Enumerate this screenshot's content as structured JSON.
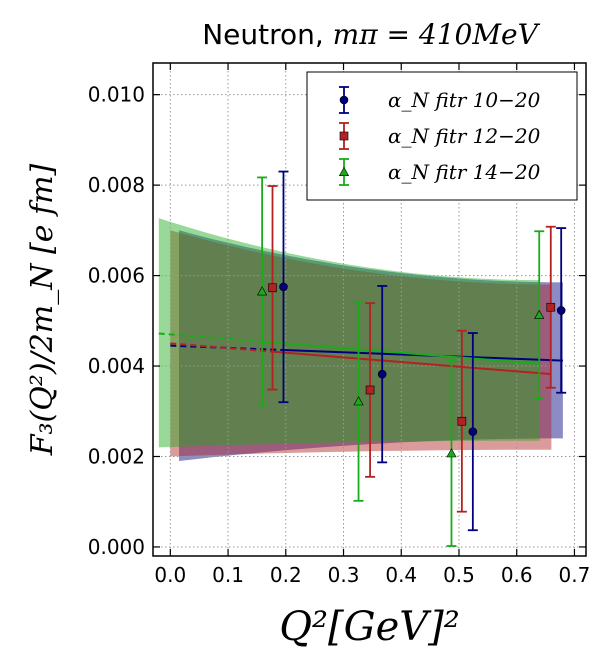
{
  "chart_data": {
    "type": "scatter",
    "title_prefix": "Neutron, ",
    "title_math": "mπ = 410MeV",
    "xlabel": "Q²[GeV]²",
    "ylabel": "F₃(Q²)/2m_N [e fm]",
    "xlim": [
      -0.03,
      0.72
    ],
    "ylim": [
      -0.0002,
      0.0107
    ],
    "x_ticks": [
      "0.0",
      "0.1",
      "0.2",
      "0.3",
      "0.4",
      "0.5",
      "0.6",
      "0.7"
    ],
    "y_ticks": [
      "0.000",
      "0.002",
      "0.004",
      "0.006",
      "0.008",
      "0.010"
    ],
    "grid": true,
    "legend_position": "top-right",
    "series": [
      {
        "name": "α_N fitr 10−20",
        "color": "#00007f",
        "marker": "circle",
        "points": [
          {
            "x": 0.196,
            "y": 0.00575,
            "err": 0.00255
          },
          {
            "x": 0.367,
            "y": 0.00382,
            "err": 0.00195
          },
          {
            "x": 0.524,
            "y": 0.00255,
            "err": 0.00218
          },
          {
            "x": 0.677,
            "y": 0.00523,
            "err": 0.00182
          }
        ],
        "fit_line": {
          "x": [
            0.0,
            0.68
          ],
          "y": [
            0.00445,
            0.00412
          ]
        },
        "band": {
          "x": [
            0.015,
            0.68
          ],
          "upper": [
            0.007,
            0.00585
          ],
          "lower": [
            0.0019,
            0.0024
          ]
        }
      },
      {
        "name": "α_N fitr 12−20",
        "color": "#b22222",
        "marker": "square",
        "points": [
          {
            "x": 0.177,
            "y": 0.00573,
            "err": 0.00225
          },
          {
            "x": 0.346,
            "y": 0.00347,
            "err": 0.00192
          },
          {
            "x": 0.505,
            "y": 0.00278,
            "err": 0.002
          },
          {
            "x": 0.659,
            "y": 0.0053,
            "err": 0.00178
          }
        ],
        "fit_line": {
          "x": [
            0.0,
            0.66
          ],
          "y": [
            0.0045,
            0.00382
          ]
        },
        "band": {
          "x": [
            0.0,
            0.66
          ],
          "upper": [
            0.007,
            0.0058
          ],
          "lower": [
            0.002,
            0.00215
          ]
        }
      },
      {
        "name": "α_N fitr 14−20",
        "color": "#1aab1a",
        "marker": "triangle",
        "points": [
          {
            "x": 0.159,
            "y": 0.00565,
            "err": 0.00252
          },
          {
            "x": 0.326,
            "y": 0.00322,
            "err": 0.0022
          },
          {
            "x": 0.487,
            "y": 0.00207,
            "err": 0.00205
          },
          {
            "x": 0.639,
            "y": 0.00513,
            "err": 0.00185
          }
        ],
        "fit_line": {
          "x": [
            -0.02,
            0.64
          ],
          "y": [
            0.00472,
            0.00405
          ]
        },
        "band": {
          "x": [
            -0.02,
            0.64
          ],
          "upper": [
            0.00727,
            0.0059
          ],
          "lower": [
            0.0022,
            0.00235
          ]
        }
      }
    ]
  }
}
